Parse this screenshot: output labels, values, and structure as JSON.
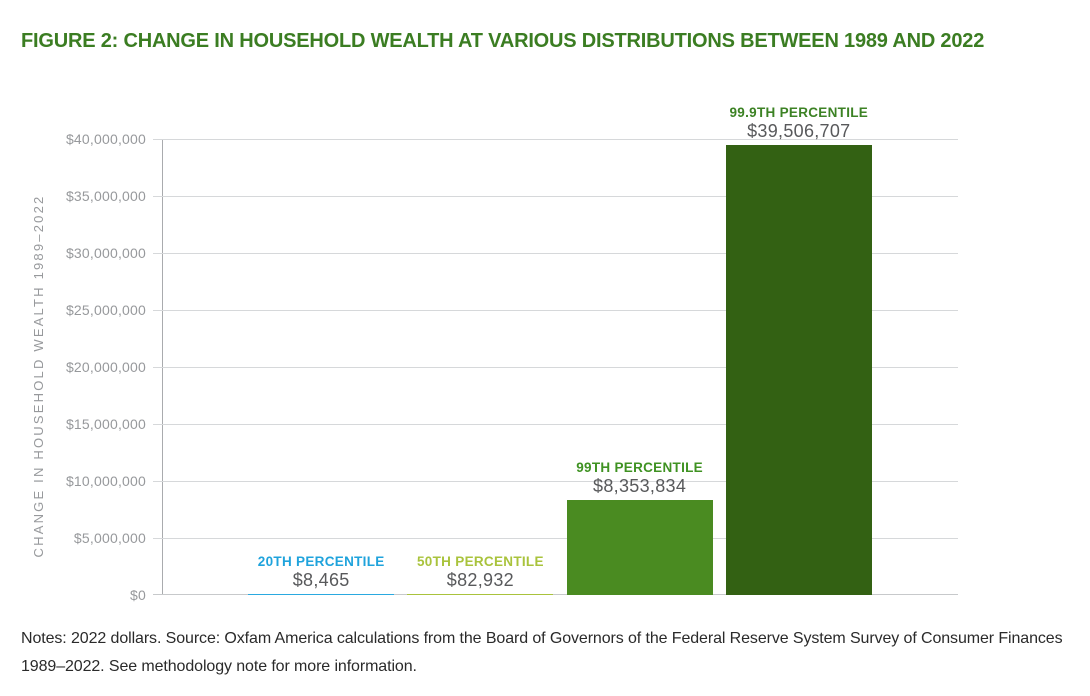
{
  "chart_data": {
    "type": "bar",
    "title": "FIGURE 2: CHANGE IN HOUSEHOLD WEALTH AT VARIOUS DISTRIBUTIONS BETWEEN 1989 AND 2022",
    "ylabel": "CHANGE IN HOUSEHOLD WEALTH 1989–2022",
    "xlabel": "",
    "ylim": [
      0,
      40000000
    ],
    "grid": true,
    "legend": "none",
    "categories": [
      "20TH PERCENTILE",
      "50TH PERCENTILE",
      "99TH PERCENTILE",
      "99.9TH PERCENTILE"
    ],
    "values": [
      8465,
      82932,
      8353834,
      39506707
    ],
    "value_labels": [
      "$8,465",
      "$82,932",
      "$8,353,834",
      "$39,506,707"
    ],
    "label_colors": [
      "#1FA3DC",
      "#A9C33C",
      "#3F9222",
      "#3C8224"
    ],
    "bar_colors": [
      "#2AA9E0",
      "#A9C33C",
      "#4A8B21",
      "#336113"
    ],
    "y_ticks": [
      {
        "value": 0,
        "label": "$0"
      },
      {
        "value": 5000000,
        "label": "$5,000,000"
      },
      {
        "value": 10000000,
        "label": "$10,000,000"
      },
      {
        "value": 15000000,
        "label": "$15,000,000"
      },
      {
        "value": 20000000,
        "label": "$20,000,000"
      },
      {
        "value": 25000000,
        "label": "$25,000,000"
      },
      {
        "value": 30000000,
        "label": "$30,000,000"
      },
      {
        "value": 35000000,
        "label": "$35,000,000"
      },
      {
        "value": 40000000,
        "label": "$40,000,000"
      }
    ]
  },
  "notes": {
    "text": "Notes: 2022 dollars. Source: Oxfam America calculations from the Board of Governors of the Federal Reserve System Survey of Consumer Finances 1989–2022. See methodology note for more information."
  },
  "colors": {
    "title_text": "#3B7D22",
    "axis_text": "#97999C",
    "value_text": "#58595B",
    "gridline": "#D6D8DA",
    "axis_line": "#A9ABAE",
    "background": "#FFFFFF",
    "notes_text": "#2A2A2A"
  }
}
